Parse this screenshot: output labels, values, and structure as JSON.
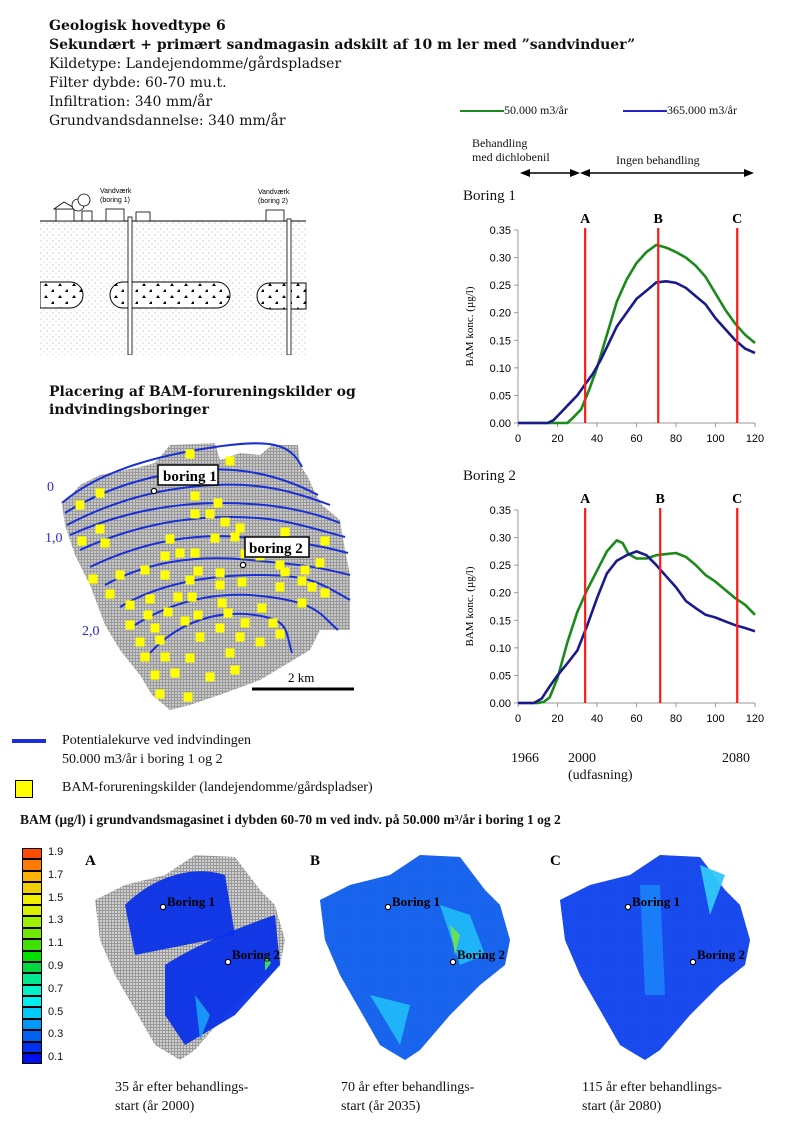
{
  "header": {
    "title": "Geologisk hovedtype 6",
    "subtitle": "Sekundært + primært sandmagasin adskilt af 10 m ler med ”sandvinduer”",
    "lines": [
      "Kildetype: Landejendomme/gårdspladser",
      "Filter dybde: 60-70 mu.t.",
      "Infiltration: 340 mm/år",
      "Grundvandsdannelse: 340 mm/år"
    ]
  },
  "cross_section": {
    "labels": [
      "Vandværk",
      "(boring 1)",
      "Vandværk",
      "(boring 2)"
    ]
  },
  "map": {
    "title_line1": "Placering af BAM-forureningskilder og",
    "title_line2": "indvindingsboringer",
    "boring1_label": "boring 1",
    "boring2_label": "boring 2",
    "contour_labels": [
      "0",
      "1,0",
      "2,0"
    ],
    "scale_label": "2 km",
    "contour_color": "#1a2fd6",
    "source_color": "#ffff00"
  },
  "legend_bottom": {
    "line_label_1": "Potentialekurve ved indvindingen",
    "line_label_2": "50.000 m3/år i boring 1 og 2",
    "square_label": "BAM-forureningskilder (landejendomme/gårdspladser)"
  },
  "treatment": {
    "left_label_1": "Behandling",
    "left_label_2": "med dichlobenil",
    "right_label": "Ingen behandling"
  },
  "timeline": {
    "years": [
      "1966",
      "2000",
      "2080"
    ],
    "note": "(udfasning)"
  },
  "chart_data": [
    {
      "type": "line",
      "title": "Boring 1",
      "xlabel": "",
      "ylabel": "BAM konc. (µg/l)",
      "xlim": [
        0,
        120
      ],
      "ylim": [
        0,
        0.35
      ],
      "xticks": [
        "0",
        "20",
        "40",
        "60",
        "80",
        "100",
        "120"
      ],
      "yticks": [
        "0.00",
        "0.05",
        "0.10",
        "0.15",
        "0.20",
        "0.25",
        "0.30",
        "0.35"
      ],
      "legend": "top",
      "markers": [
        {
          "label": "A",
          "x": 34
        },
        {
          "label": "B",
          "x": 71
        },
        {
          "label": "C",
          "x": 111
        }
      ],
      "series": [
        {
          "name": "50.000 m3/år",
          "color": "#1a8a1a",
          "x": [
            0,
            20,
            25,
            28,
            32,
            36,
            40,
            45,
            50,
            55,
            60,
            65,
            70,
            75,
            80,
            85,
            90,
            95,
            100,
            105,
            110,
            115,
            120
          ],
          "y": [
            0,
            0,
            0,
            0.01,
            0.025,
            0.06,
            0.1,
            0.16,
            0.22,
            0.26,
            0.29,
            0.31,
            0.323,
            0.318,
            0.31,
            0.3,
            0.285,
            0.265,
            0.235,
            0.205,
            0.18,
            0.16,
            0.145
          ]
        },
        {
          "name": "365.000 m3/år",
          "color": "#1a1a8c",
          "x": [
            0,
            15,
            18,
            22,
            26,
            30,
            34,
            38,
            42,
            46,
            50,
            55,
            60,
            65,
            70,
            75,
            80,
            85,
            90,
            95,
            100,
            105,
            110,
            115,
            120
          ],
          "y": [
            0,
            0,
            0.005,
            0.02,
            0.035,
            0.05,
            0.07,
            0.09,
            0.115,
            0.145,
            0.175,
            0.2,
            0.225,
            0.24,
            0.255,
            0.257,
            0.254,
            0.245,
            0.23,
            0.215,
            0.19,
            0.17,
            0.15,
            0.135,
            0.127
          ]
        }
      ]
    },
    {
      "type": "line",
      "title": "Boring 2",
      "xlabel": "",
      "ylabel": "BAM konc. (µg/l)",
      "xlim": [
        0,
        120
      ],
      "ylim": [
        0,
        0.35
      ],
      "xticks": [
        "0",
        "20",
        "40",
        "60",
        "80",
        "100",
        "120"
      ],
      "yticks": [
        "0.00",
        "0.05",
        "0.10",
        "0.15",
        "0.20",
        "0.25",
        "0.30",
        "0.35"
      ],
      "markers": [
        {
          "label": "A",
          "x": 34
        },
        {
          "label": "B",
          "x": 72
        },
        {
          "label": "C",
          "x": 111
        }
      ],
      "series": [
        {
          "name": "50.000 m3/år",
          "color": "#1a8a1a",
          "x": [
            0,
            10,
            13,
            16,
            20,
            25,
            30,
            35,
            40,
            45,
            50,
            53,
            56,
            60,
            65,
            70,
            75,
            80,
            85,
            90,
            95,
            100,
            105,
            110,
            115,
            120
          ],
          "y": [
            0,
            0,
            0.002,
            0.01,
            0.045,
            0.11,
            0.165,
            0.205,
            0.24,
            0.275,
            0.295,
            0.29,
            0.27,
            0.262,
            0.262,
            0.268,
            0.27,
            0.272,
            0.265,
            0.25,
            0.232,
            0.22,
            0.205,
            0.19,
            0.178,
            0.16
          ]
        },
        {
          "name": "365.000 m3/år",
          "color": "#1a1a8c",
          "x": [
            0,
            8,
            12,
            16,
            20,
            25,
            30,
            35,
            40,
            45,
            50,
            55,
            60,
            65,
            70,
            75,
            80,
            85,
            90,
            95,
            100,
            105,
            110,
            115,
            120
          ],
          "y": [
            0,
            0,
            0.008,
            0.03,
            0.05,
            0.072,
            0.095,
            0.14,
            0.19,
            0.235,
            0.258,
            0.268,
            0.275,
            0.268,
            0.25,
            0.23,
            0.21,
            0.185,
            0.172,
            0.16,
            0.155,
            0.148,
            0.141,
            0.136,
            0.13
          ]
        }
      ]
    }
  ],
  "bottom_section": {
    "title": "BAM (µg/l) i grundvandsmagasinet i dybden 60-70 m ved indv. på 50.000 m³/år i boring 1 og 2",
    "colorbar": {
      "labels": [
        "1.9",
        "1.7",
        "1.5",
        "1.3",
        "1.1",
        "0.9",
        "0.7",
        "0.5",
        "0.3",
        "0.1"
      ],
      "colors": [
        "#ff4a00",
        "#ff7a00",
        "#ffb000",
        "#f2d000",
        "#f0f000",
        "#d8f000",
        "#a0f000",
        "#70e800",
        "#40e000",
        "#00e000",
        "#00d840",
        "#00e890",
        "#00f0c8",
        "#00f0f0",
        "#00c8f8",
        "#0098f8",
        "#0060f0",
        "#0030f0",
        "#0010e8"
      ]
    },
    "panels": [
      {
        "letter": "A",
        "caption_1": "35 år efter behandlings-",
        "caption_2": "start (år 2000)",
        "boring1": "Boring 1",
        "boring2": "Boring 2"
      },
      {
        "letter": "B",
        "caption_1": "70 år efter behandlings-",
        "caption_2": "start (år 2035)",
        "boring1": "Boring 1",
        "boring2": "Boring 2"
      },
      {
        "letter": "C",
        "caption_1": "115 år efter behandlings-",
        "caption_2": "start (år 2080)",
        "boring1": "Boring 1",
        "boring2": "Boring 2"
      }
    ]
  }
}
